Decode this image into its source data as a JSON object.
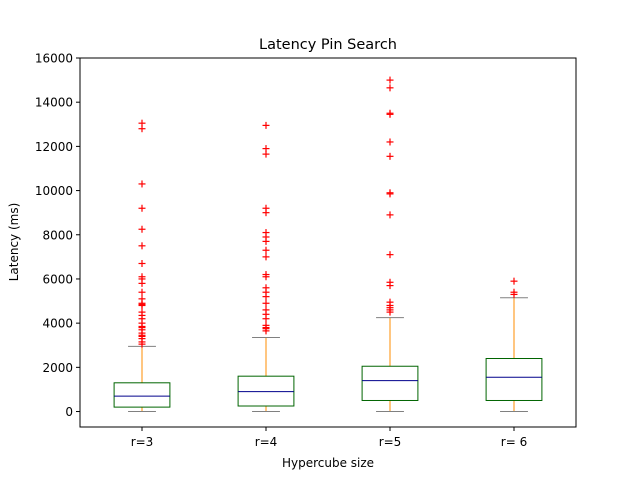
{
  "chart_data": {
    "type": "boxplot",
    "title": "Latency Pin Search",
    "xlabel": "Hypercube size",
    "ylabel": "Latency (ms)",
    "ylim": [
      -700,
      16000
    ],
    "yticks": [
      0,
      2000,
      4000,
      6000,
      8000,
      10000,
      12000,
      14000,
      16000
    ],
    "categories": [
      "r=3",
      "r=4",
      "r=5",
      "r= 6"
    ],
    "boxes": [
      {
        "label": "r=3",
        "whisker_low": 0,
        "q1": 200,
        "median": 700,
        "q3": 1300,
        "whisker_high": 2950,
        "outliers": [
          3050,
          3150,
          3300,
          3400,
          3450,
          3550,
          3700,
          3800,
          3850,
          4000,
          4200,
          4350,
          4500,
          4800,
          4850,
          4900,
          5100,
          5400,
          5800,
          6000,
          6100,
          6700,
          7500,
          8250,
          9200,
          10300,
          12800,
          13050
        ]
      },
      {
        "label": "r=4",
        "whisker_low": 0,
        "q1": 250,
        "median": 900,
        "q3": 1600,
        "whisker_high": 3350,
        "outliers": [
          3650,
          3750,
          3800,
          3900,
          4200,
          4400,
          4600,
          4900,
          5200,
          5400,
          5600,
          6100,
          6200,
          7000,
          7300,
          7700,
          7900,
          8100,
          9000,
          9200,
          11650,
          11900,
          12950
        ]
      },
      {
        "label": "r=5",
        "whisker_low": 0,
        "q1": 500,
        "median": 1400,
        "q3": 2050,
        "whisker_high": 4250,
        "outliers": [
          4500,
          4600,
          4700,
          4800,
          4950,
          5700,
          5850,
          7100,
          8900,
          9850,
          9900,
          11550,
          12200,
          13450,
          13500,
          14650,
          15000
        ]
      },
      {
        "label": "r= 6",
        "whisker_low": 0,
        "q1": 500,
        "median": 1550,
        "q3": 2400,
        "whisker_high": 5150,
        "outliers": [
          5300,
          5400,
          5900
        ]
      }
    ],
    "colors": {
      "box": "#006400",
      "median": "#00008b",
      "whisker": "#ff8c00",
      "cap": "#808080",
      "outlier": "#ff0000",
      "axis": "#000000"
    }
  }
}
